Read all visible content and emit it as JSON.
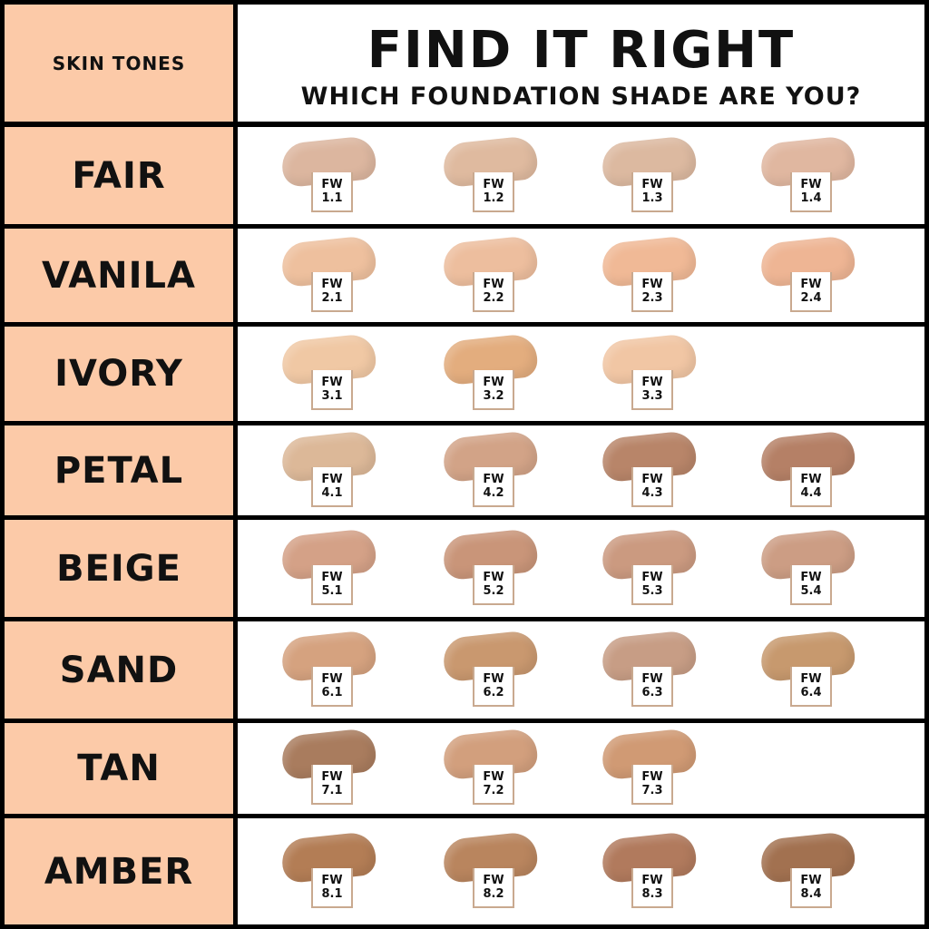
{
  "header": {
    "left_label": "SKIN TONES",
    "title": "FIND IT RIGHT",
    "subtitle": "WHICH FOUNDATION SHADE ARE YOU?"
  },
  "colors": {
    "tone_column_bg": "#fccaa8",
    "label_border": "#c9a98f",
    "grid_lines": "#000000"
  },
  "rows": [
    {
      "tone": "FAIR",
      "shades": [
        {
          "prefix": "FW",
          "code": "1.1",
          "color": "#dcb69f"
        },
        {
          "prefix": "FW",
          "code": "1.2",
          "color": "#dfba9f"
        },
        {
          "prefix": "FW",
          "code": "1.3",
          "color": "#dcb9a0"
        },
        {
          "prefix": "FW",
          "code": "1.4",
          "color": "#e0b7a0"
        }
      ]
    },
    {
      "tone": "VANILA",
      "shades": [
        {
          "prefix": "FW",
          "code": "2.1",
          "color": "#eec09e"
        },
        {
          "prefix": "FW",
          "code": "2.2",
          "color": "#edbe9e"
        },
        {
          "prefix": "FW",
          "code": "2.3",
          "color": "#f0b996"
        },
        {
          "prefix": "FW",
          "code": "2.4",
          "color": "#eeb594"
        }
      ]
    },
    {
      "tone": "IVORY",
      "shades": [
        {
          "prefix": "FW",
          "code": "3.1",
          "color": "#f0c8a4"
        },
        {
          "prefix": "FW",
          "code": "3.2",
          "color": "#e3ad7e"
        },
        {
          "prefix": "FW",
          "code": "3.3",
          "color": "#f1c6a4"
        }
      ]
    },
    {
      "tone": "PETAL",
      "shades": [
        {
          "prefix": "FW",
          "code": "4.1",
          "color": "#dcb898"
        },
        {
          "prefix": "FW",
          "code": "4.2",
          "color": "#d2a387"
        },
        {
          "prefix": "FW",
          "code": "4.3",
          "color": "#b88569"
        },
        {
          "prefix": "FW",
          "code": "4.4",
          "color": "#b58066"
        }
      ]
    },
    {
      "tone": "BEIGE",
      "shades": [
        {
          "prefix": "FW",
          "code": "5.1",
          "color": "#d4a187"
        },
        {
          "prefix": "FW",
          "code": "5.2",
          "color": "#c99579"
        },
        {
          "prefix": "FW",
          "code": "5.3",
          "color": "#cb9a80"
        },
        {
          "prefix": "FW",
          "code": "5.4",
          "color": "#cc9d84"
        }
      ]
    },
    {
      "tone": "SAND",
      "shades": [
        {
          "prefix": "FW",
          "code": "6.1",
          "color": "#d5a27f"
        },
        {
          "prefix": "FW",
          "code": "6.2",
          "color": "#c9986f"
        },
        {
          "prefix": "FW",
          "code": "6.3",
          "color": "#c79d85"
        },
        {
          "prefix": "FW",
          "code": "6.4",
          "color": "#c7996e"
        }
      ]
    },
    {
      "tone": "TAN",
      "shades": [
        {
          "prefix": "FW",
          "code": "7.1",
          "color": "#a97c5e"
        },
        {
          "prefix": "FW",
          "code": "7.2",
          "color": "#d29f7d"
        },
        {
          "prefix": "FW",
          "code": "7.3",
          "color": "#d09a74"
        }
      ]
    },
    {
      "tone": "AMBER",
      "shades": [
        {
          "prefix": "FW",
          "code": "8.1",
          "color": "#b37d55"
        },
        {
          "prefix": "FW",
          "code": "8.2",
          "color": "#b9855e"
        },
        {
          "prefix": "FW",
          "code": "8.3",
          "color": "#b17a5d"
        },
        {
          "prefix": "FW",
          "code": "8.4",
          "color": "#a27150"
        }
      ]
    }
  ]
}
